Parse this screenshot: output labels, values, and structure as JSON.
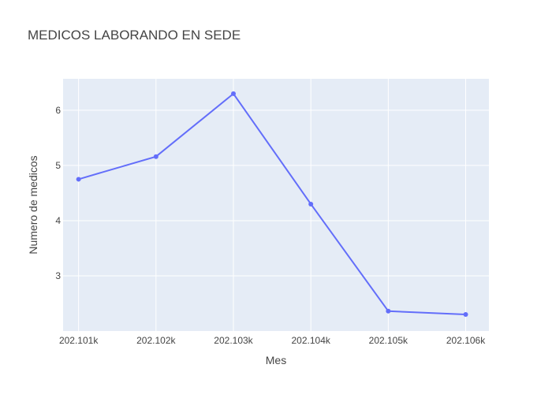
{
  "chart_data": {
    "type": "line",
    "title": "MEDICOS LABORANDO EN SEDE",
    "xlabel": "Mes",
    "ylabel": "Numero de medicos",
    "x": [
      202101,
      202102,
      202103,
      202104,
      202105,
      202106
    ],
    "x_tick_labels": [
      "202.101k",
      "202.102k",
      "202.103k",
      "202.104k",
      "202.105k",
      "202.106k"
    ],
    "xlim": [
      202100.8,
      202106.3
    ],
    "y_ticks": [
      3,
      4,
      5,
      6
    ],
    "y_tick_labels": [
      "3",
      "4",
      "5",
      "6"
    ],
    "ylim": [
      2.0,
      6.57
    ],
    "grid": true,
    "series": [
      {
        "values": [
          4.75,
          5.16,
          6.3,
          4.3,
          2.36,
          2.3
        ],
        "color": "#636efa"
      }
    ],
    "plot_background": "#e5ecf6",
    "grid_color": "#ffffff"
  }
}
